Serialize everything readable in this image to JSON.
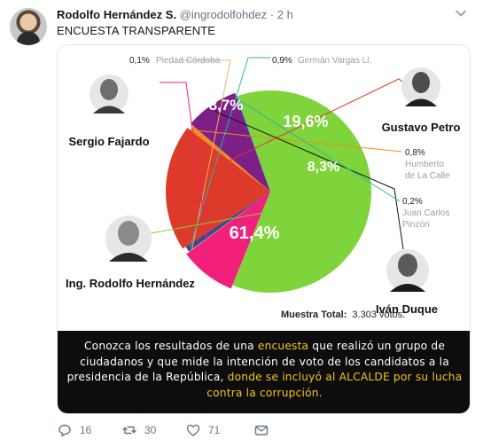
{
  "tweet": {
    "display_name": "Rodolfo Hernández S.",
    "handle": "@ingrodolfohdez",
    "separator": "·",
    "time": "2 h",
    "text": "ENCUESTA TRANSPARENTE"
  },
  "chart_data": {
    "type": "pie",
    "title": "",
    "slices": [
      {
        "label": "Ing. Rodolfo Hernández",
        "value": 61.4,
        "display": "61,4%",
        "color": "#7ed43a"
      },
      {
        "label": "Sergio Fajardo",
        "value": 8.7,
        "display": "8,7%",
        "color": "#f2207a"
      },
      {
        "label": "Piedad Córdoba",
        "value": 0.1,
        "display": "0,1%",
        "color": "#f5b06b"
      },
      {
        "label": "Germán Vargas Ll.",
        "value": 0.9,
        "display": "0,9%",
        "color": "#3b4a8c"
      },
      {
        "label": "Gustavo Petro",
        "value": 19.6,
        "display": "19,6%",
        "color": "#dd3a2b"
      },
      {
        "label": "Humberto de La Calle",
        "value": 0.8,
        "display": "0,8%",
        "color": "#f28c1e"
      },
      {
        "label": "Iván Duque",
        "value": 8.3,
        "display": "8,3%",
        "color": "#7c1f86"
      },
      {
        "label": "Juan Carlos Pinzón",
        "value": 0.2,
        "display": "0,2%",
        "color": "#2fb3a6"
      }
    ],
    "small_labels": {
      "piedad": {
        "pct": "0,1%",
        "name": "Piedad Córdoba"
      },
      "vargas": {
        "pct": "0,9%",
        "name": "Germán Vargas Ll."
      },
      "humberto": {
        "pct": "0,8%",
        "line1": "Humberto",
        "line2": "de La Calle"
      },
      "pinzon": {
        "pct": "0,2%",
        "line1": "Juan Carlos",
        "line2": "Pinzón"
      }
    },
    "candidates": {
      "fajardo": "Sergio Fajardo",
      "petro": "Gustavo Petro",
      "rodolfo": "Ing. Rodolfo Hernández",
      "duque": "Iván Duque"
    },
    "sample": {
      "label": "Muestra Total:",
      "value": "3.303 votos."
    }
  },
  "banner": {
    "p1": "Conozca los resultados de una ",
    "h1": "encuesta",
    "p2": " que realizó un grupo de ciudadanos y que mide la intención de voto de los candidatos a la presidencia de la República, ",
    "h2": "donde se incluyó al ALCALDE por su lucha contra la corrupción."
  },
  "actions": {
    "replies": "16",
    "retweets": "30",
    "likes": "71"
  },
  "colors": {
    "secondary_text": "#657786",
    "banner_highlight": "#f4c51b"
  }
}
